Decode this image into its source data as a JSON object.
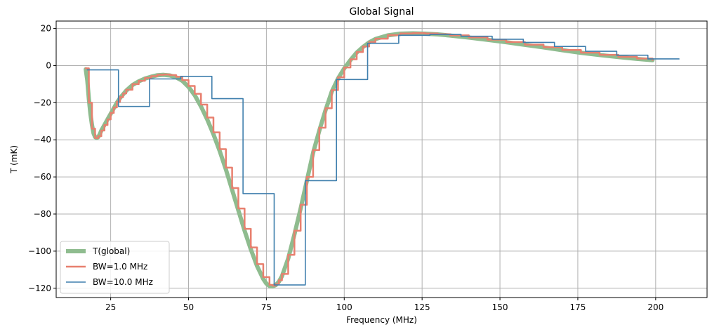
{
  "chart_data": {
    "type": "line",
    "title": "Global Signal",
    "xlabel": "Frequency (MHz)",
    "ylabel": "T (mK)",
    "xlim": [
      7.5,
      216.5
    ],
    "ylim": [
      -125,
      24
    ],
    "xticks": [
      25,
      50,
      75,
      100,
      125,
      150,
      175,
      200
    ],
    "yticks": [
      -120,
      -100,
      -80,
      -60,
      -40,
      -20,
      0,
      20
    ],
    "xtick_labels": [
      "25",
      "50",
      "75",
      "100",
      "125",
      "150",
      "175",
      "200"
    ],
    "ytick_labels": [
      "−120",
      "−100",
      "−80",
      "−60",
      "−40",
      "−20",
      "0",
      "20"
    ],
    "grid": true,
    "legend_position": "lower-left",
    "series": [
      {
        "name": "T(global)",
        "color": "#8fbc8f",
        "style": "line",
        "x": [
          17,
          17.5,
          18,
          18.5,
          19,
          19.5,
          20,
          20.5,
          21,
          21.5,
          22,
          23,
          24,
          25,
          26,
          27,
          28,
          29,
          30,
          32,
          34,
          36,
          38,
          40,
          42,
          44,
          46,
          48,
          50,
          52,
          54,
          56,
          58,
          60,
          62,
          64,
          66,
          68,
          70,
          72,
          74,
          75,
          76,
          77,
          78,
          79,
          80,
          82,
          84,
          86,
          88,
          90,
          92,
          94,
          96,
          98,
          100,
          102,
          104,
          106,
          108,
          110,
          114,
          118,
          122,
          126,
          130,
          134,
          140,
          146,
          152,
          158,
          164,
          170,
          176,
          182,
          188,
          194,
          199
        ],
        "y": [
          -2,
          -8,
          -18,
          -26,
          -32,
          -36.5,
          -38.5,
          -39,
          -38.5,
          -37,
          -35,
          -32,
          -29,
          -26,
          -23,
          -20,
          -17.5,
          -15.5,
          -13.5,
          -10.5,
          -8.5,
          -7,
          -6,
          -5.2,
          -5,
          -5.3,
          -6.3,
          -8.2,
          -11.5,
          -16,
          -22,
          -29,
          -37,
          -46,
          -56,
          -67,
          -78,
          -89,
          -99,
          -108,
          -115,
          -117.5,
          -118.8,
          -119,
          -118.3,
          -116.5,
          -113.5,
          -104,
          -91,
          -77,
          -62,
          -47,
          -35,
          -24,
          -14,
          -7,
          -1.5,
          3,
          7,
          10,
          12.5,
          14.3,
          16.3,
          17.2,
          17.4,
          17.2,
          16.8,
          16.2,
          15.1,
          13.9,
          12.6,
          11.2,
          9.8,
          8.3,
          6.9,
          5.7,
          4.6,
          3.6,
          2.9
        ]
      },
      {
        "name": "BW=1.0 MHz",
        "color": "#e8806f",
        "style": "steps",
        "x": [
          17,
          18,
          19,
          20,
          21,
          22,
          23,
          24,
          25,
          26,
          27,
          28,
          29,
          30,
          32,
          34,
          36,
          38,
          40,
          42,
          44,
          46,
          48,
          50,
          52,
          54,
          56,
          58,
          60,
          62,
          64,
          66,
          68,
          70,
          72,
          74,
          76,
          77,
          78,
          79,
          80,
          82,
          84,
          86,
          88,
          90,
          92,
          94,
          96,
          98,
          100,
          102,
          104,
          106,
          108,
          110,
          114,
          118,
          122,
          126,
          130,
          134,
          140,
          146,
          152,
          158,
          164,
          170,
          176,
          182,
          188,
          194,
          199
        ],
        "y": [
          -1.5,
          -20,
          -34,
          -39,
          -38,
          -35,
          -32,
          -29,
          -25.5,
          -22.5,
          -19.5,
          -17,
          -15,
          -13,
          -10,
          -8.2,
          -6.7,
          -5.7,
          -5,
          -4.8,
          -5.1,
          -6,
          -7.8,
          -11,
          -15.2,
          -21,
          -28,
          -36,
          -45,
          -55,
          -66,
          -77,
          -88,
          -98,
          -107,
          -114,
          -118.2,
          -118.6,
          -117.8,
          -115.7,
          -112.3,
          -102,
          -89,
          -75,
          -60,
          -45.5,
          -33.5,
          -23,
          -13.2,
          -6.3,
          -1,
          3.4,
          7.3,
          10.3,
          12.7,
          14.5,
          16.4,
          17.3,
          17.5,
          17.3,
          16.9,
          16.3,
          15.2,
          14,
          12.7,
          11.3,
          9.9,
          8.4,
          7,
          5.8,
          4.7,
          3.8,
          3.0
        ]
      },
      {
        "name": "BW=10.0 MHz",
        "color": "#3f7fad",
        "style": "steps",
        "x": [
          17.5,
          27.5,
          37.5,
          47.5,
          57.5,
          67.5,
          77.5,
          87.5,
          97.5,
          107.5,
          117.5,
          127.5,
          137.5,
          147.5,
          157.5,
          167.5,
          177.5,
          187.5,
          197.5,
          207.5
        ],
        "y": [
          -2.3,
          -22,
          -7.2,
          -5.8,
          -17.8,
          -69,
          -118.2,
          -62,
          -7.5,
          12,
          16.3,
          16.8,
          15.8,
          14.2,
          12.5,
          10.3,
          7.7,
          5.6,
          3.6,
          3.6
        ]
      }
    ]
  }
}
